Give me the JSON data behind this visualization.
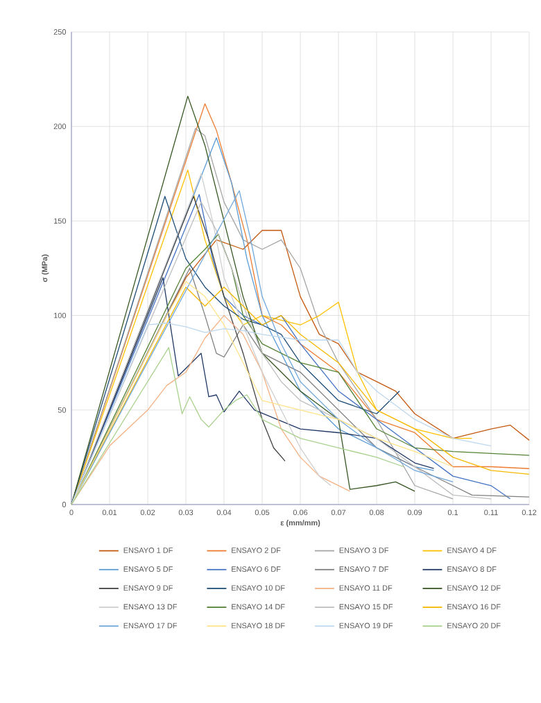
{
  "chart_data": {
    "type": "line",
    "xlabel": "ε (mm/mm)",
    "ylabel": "σ (MPa)",
    "xlim": [
      0,
      0.12
    ],
    "ylim": [
      0,
      250
    ],
    "xticks": [
      0,
      0.01,
      0.02,
      0.03,
      0.04,
      0.05,
      0.06,
      0.07,
      0.08,
      0.09,
      0.1,
      0.11,
      0.12
    ],
    "yticks": [
      0,
      50,
      100,
      150,
      200,
      250
    ],
    "grid": true,
    "legend": "bottom",
    "series": [
      {
        "name": "ENSAYO 1 DF",
        "color": "#c55a11",
        "x": [
          0,
          0.03,
          0.038,
          0.045,
          0.05,
          0.055,
          0.06,
          0.065,
          0.07,
          0.075,
          0.08,
          0.085,
          0.09,
          0.1,
          0.11,
          0.115,
          0.12
        ],
        "values": [
          0,
          120,
          140,
          135,
          145,
          145,
          110,
          90,
          85,
          70,
          65,
          60,
          48,
          35,
          40,
          42,
          34
        ]
      },
      {
        "name": "ENSAYO 2 DF",
        "color": "#ed7d31",
        "x": [
          0,
          0.035,
          0.038,
          0.042,
          0.046,
          0.05,
          0.055,
          0.06,
          0.07,
          0.08,
          0.09,
          0.1,
          0.11,
          0.12
        ],
        "values": [
          0,
          212,
          198,
          170,
          140,
          100,
          95,
          85,
          70,
          45,
          38,
          20,
          20,
          19
        ]
      },
      {
        "name": "ENSAYO 3 DF",
        "color": "#a5a5a5",
        "x": [
          0,
          0.0325,
          0.035,
          0.04,
          0.045,
          0.05,
          0.055,
          0.06,
          0.065,
          0.07,
          0.08,
          0.09,
          0.1
        ],
        "values": [
          0,
          199,
          195,
          160,
          140,
          135,
          140,
          125,
          95,
          75,
          45,
          10,
          3
        ]
      },
      {
        "name": "ENSAYO 4 DF",
        "color": "#ffc000",
        "x": [
          0,
          0.0305,
          0.035,
          0.04,
          0.045,
          0.05,
          0.06,
          0.065,
          0.07,
          0.075,
          0.08,
          0.09,
          0.1,
          0.105
        ],
        "values": [
          0,
          177,
          140,
          110,
          95,
          100,
          95,
          100,
          107,
          70,
          50,
          40,
          35,
          35
        ]
      },
      {
        "name": "ENSAYO 5 DF",
        "color": "#5b9bd5",
        "x": [
          0,
          0.038,
          0.042,
          0.046,
          0.05,
          0.055,
          0.06,
          0.07,
          0.08,
          0.09,
          0.095
        ],
        "values": [
          0,
          194,
          170,
          130,
          100,
          80,
          60,
          40,
          30,
          20,
          18
        ]
      },
      {
        "name": "ENSAYO 6 DF",
        "color": "#4472c4",
        "x": [
          0,
          0.0335,
          0.037,
          0.04,
          0.045,
          0.05,
          0.055,
          0.06,
          0.07,
          0.08,
          0.09,
          0.1,
          0.11,
          0.115
        ],
        "values": [
          0,
          164,
          130,
          110,
          100,
          95,
          100,
          85,
          60,
          45,
          30,
          15,
          10,
          3
        ]
      },
      {
        "name": "ENSAYO 7 DF",
        "color": "#7f7f7f",
        "x": [
          0,
          0.031,
          0.035,
          0.038,
          0.04,
          0.045,
          0.05,
          0.06,
          0.07,
          0.08,
          0.09,
          0.1,
          0.105,
          0.12
        ],
        "values": [
          0,
          125,
          100,
          80,
          78,
          95,
          80,
          70,
          50,
          30,
          20,
          10,
          5,
          4
        ]
      },
      {
        "name": "ENSAYO 8 DF",
        "color": "#203864",
        "x": [
          0,
          0.024,
          0.028,
          0.031,
          0.034,
          0.036,
          0.038,
          0.04,
          0.044,
          0.048,
          0.06,
          0.07,
          0.08,
          0.09,
          0.095
        ],
        "values": [
          0,
          120,
          68,
          74,
          80,
          57,
          58,
          49,
          60,
          50,
          40,
          38,
          35,
          22,
          19
        ]
      },
      {
        "name": "ENSAYO 9 DF",
        "color": "#404040",
        "x": [
          0,
          0.032,
          0.036,
          0.04,
          0.045,
          0.05,
          0.053,
          0.056
        ],
        "values": [
          0,
          163,
          140,
          110,
          80,
          45,
          30,
          23
        ]
      },
      {
        "name": "ENSAYO 10 DF",
        "color": "#1f4e79",
        "x": [
          0,
          0.0245,
          0.03,
          0.035,
          0.04,
          0.045,
          0.05,
          0.055,
          0.06,
          0.07,
          0.08,
          0.086
        ],
        "values": [
          0,
          163,
          130,
          115,
          105,
          98,
          95,
          90,
          75,
          55,
          48,
          60
        ]
      },
      {
        "name": "ENSAYO 11 DF",
        "color": "#f4b183",
        "x": [
          0,
          0.01,
          0.02,
          0.025,
          0.03,
          0.035,
          0.04,
          0.045,
          0.05,
          0.055,
          0.06,
          0.065,
          0.073
        ],
        "values": [
          0,
          31,
          50,
          63,
          70,
          88,
          100,
          90,
          70,
          40,
          25,
          15,
          7
        ]
      },
      {
        "name": "ENSAYO 12 DF",
        "color": "#385723",
        "x": [
          0,
          0.0305,
          0.035,
          0.04,
          0.045,
          0.05,
          0.06,
          0.07,
          0.073,
          0.08,
          0.085,
          0.09
        ],
        "values": [
          0,
          216,
          190,
          150,
          110,
          80,
          60,
          45,
          8,
          10,
          12,
          7
        ]
      },
      {
        "name": "ENSAYO 13 DF",
        "color": "#d0cece",
        "x": [
          0,
          0.034,
          0.037,
          0.04,
          0.045,
          0.05,
          0.055,
          0.06,
          0.065,
          0.068
        ],
        "values": [
          0,
          175,
          150,
          120,
          95,
          70,
          50,
          30,
          15,
          10
        ]
      },
      {
        "name": "ENSAYO 14 DF",
        "color": "#548235",
        "x": [
          0,
          0.03,
          0.035,
          0.0385,
          0.042,
          0.045,
          0.05,
          0.06,
          0.07,
          0.08,
          0.09,
          0.1,
          0.12
        ],
        "values": [
          0,
          125,
          135,
          143,
          125,
          100,
          85,
          75,
          70,
          40,
          30,
          28,
          26
        ]
      },
      {
        "name": "ENSAYO 15 DF",
        "color": "#bfbfbf",
        "x": [
          0,
          0.034,
          0.038,
          0.042,
          0.046,
          0.05,
          0.055,
          0.06,
          0.07,
          0.08,
          0.09,
          0.1,
          0.11
        ],
        "values": [
          0,
          160,
          145,
          125,
          100,
          80,
          65,
          55,
          45,
          35,
          20,
          5,
          3
        ]
      },
      {
        "name": "ENSAYO 16 DF",
        "color": "#f5b800",
        "x": [
          0,
          0.03,
          0.035,
          0.04,
          0.045,
          0.05,
          0.055,
          0.06,
          0.07,
          0.08,
          0.09,
          0.1,
          0.11,
          0.12
        ],
        "values": [
          0,
          115,
          105,
          115,
          105,
          95,
          100,
          90,
          75,
          50,
          40,
          25,
          18,
          16
        ]
      },
      {
        "name": "ENSAYO 17 DF",
        "color": "#6fa8dc",
        "x": [
          0,
          0.044,
          0.047,
          0.05,
          0.055,
          0.06,
          0.07,
          0.08,
          0.09,
          0.1
        ],
        "values": [
          0,
          166,
          140,
          110,
          85,
          65,
          45,
          30,
          18,
          12
        ]
      },
      {
        "name": "ENSAYO 18 DF",
        "color": "#ffe38a",
        "x": [
          0,
          0.025,
          0.03,
          0.035,
          0.04,
          0.045,
          0.05,
          0.06,
          0.07,
          0.08,
          0.09,
          0.1
        ],
        "values": [
          0,
          100,
          118,
          110,
          95,
          75,
          55,
          50,
          45,
          35,
          28,
          20
        ]
      },
      {
        "name": "ENSAYO 19 DF",
        "color": "#bdd7ee",
        "x": [
          0,
          0.02,
          0.025,
          0.03,
          0.035,
          0.04,
          0.045,
          0.05,
          0.06,
          0.07,
          0.075,
          0.08,
          0.09,
          0.1,
          0.11
        ],
        "values": [
          0,
          95,
          96,
          94,
          91,
          93,
          92,
          90,
          87,
          87,
          70,
          60,
          45,
          35,
          31
        ]
      },
      {
        "name": "ENSAYO 20 DF",
        "color": "#a9d18e",
        "x": [
          0,
          0.0255,
          0.029,
          0.031,
          0.034,
          0.036,
          0.04,
          0.043,
          0.046,
          0.05,
          0.06,
          0.07,
          0.08,
          0.087
        ],
        "values": [
          0,
          83,
          48,
          57,
          45,
          41,
          50,
          55,
          58,
          45,
          35,
          30,
          25,
          20
        ]
      }
    ]
  }
}
